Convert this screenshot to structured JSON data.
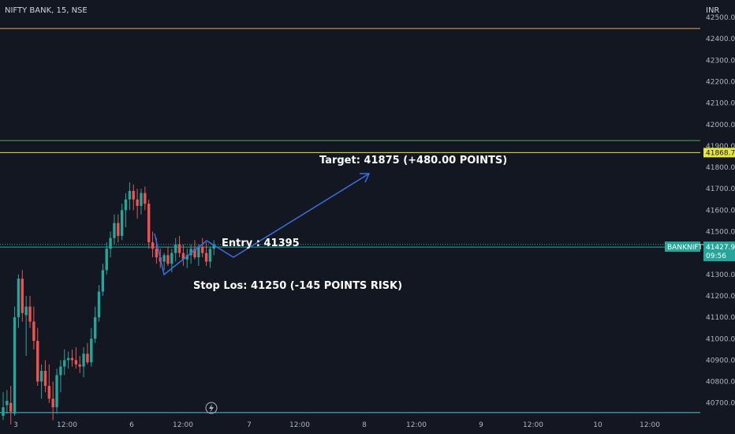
{
  "header": {
    "title": "NIFTY BANK, 15, NSE",
    "currency": "INR"
  },
  "colors": {
    "background": "#131722",
    "up": "#26a69a",
    "down": "#ef5350",
    "target_line": "#e6e63c",
    "top_line": "#f0a050",
    "mid_line": "#4caf50",
    "price_line": "#26a69a",
    "low_line": "#5bbcd6",
    "projection": "#3b6fe0"
  },
  "chart_data": {
    "type": "candlestick",
    "symbol": "BANKNIFTY",
    "ylim": [
      40640,
      42500
    ],
    "y_ticks": [
      40700,
      40800,
      40900,
      41000,
      41100,
      41200,
      41300,
      41400,
      41500,
      41600,
      41700,
      41800,
      41900,
      42000,
      42100,
      42200,
      42300,
      42400,
      42500
    ],
    "x_tick_labels": [
      "3",
      "12:00",
      "6",
      "12:00",
      "7",
      "12:00",
      "8",
      "12:00",
      "9",
      "12:00",
      "10",
      "12:00"
    ],
    "levels": [
      {
        "name": "top",
        "value": 42448
      },
      {
        "name": "mid",
        "value": 41925
      },
      {
        "name": "target",
        "value": 41868.7,
        "label": "41868.70"
      },
      {
        "name": "entry",
        "value": 41440
      },
      {
        "name": "price",
        "value": 41427.9,
        "label": "41427.90",
        "symbol_tag": "BANKNIFTY",
        "countdown": "09:56"
      },
      {
        "name": "low",
        "value": 40655
      }
    ],
    "candles": [
      [
        40640,
        40750,
        40620,
        40680
      ],
      [
        40690,
        40760,
        40650,
        40710
      ],
      [
        40700,
        40780,
        40600,
        40660
      ],
      [
        40650,
        41150,
        40640,
        41100
      ],
      [
        41100,
        41300,
        41050,
        41280
      ],
      [
        41280,
        41320,
        41080,
        41120
      ],
      [
        41110,
        41200,
        40920,
        41150
      ],
      [
        41150,
        41200,
        41050,
        41080
      ],
      [
        41080,
        41150,
        40950,
        40990
      ],
      [
        40990,
        41050,
        40780,
        40800
      ],
      [
        40800,
        40880,
        40720,
        40850
      ],
      [
        40850,
        40900,
        40750,
        40780
      ],
      [
        40780,
        40880,
        40700,
        40720
      ],
      [
        40720,
        40800,
        40620,
        40680
      ],
      [
        40680,
        40860,
        40650,
        40830
      ],
      [
        40830,
        40900,
        40750,
        40870
      ],
      [
        40870,
        40950,
        40830,
        40900
      ],
      [
        40900,
        40940,
        40860,
        40910
      ],
      [
        40910,
        40950,
        40870,
        40900
      ],
      [
        40900,
        40960,
        40860,
        40880
      ],
      [
        40880,
        40920,
        40840,
        40870
      ],
      [
        40870,
        40960,
        40820,
        40930
      ],
      [
        40930,
        40980,
        40880,
        40890
      ],
      [
        40890,
        41050,
        40870,
        41000
      ],
      [
        41000,
        41150,
        40980,
        41100
      ],
      [
        41100,
        41250,
        41080,
        41220
      ],
      [
        41220,
        41350,
        41200,
        41320
      ],
      [
        41320,
        41450,
        41300,
        41420
      ],
      [
        41420,
        41500,
        41380,
        41470
      ],
      [
        41470,
        41580,
        41440,
        41540
      ],
      [
        41540,
        41580,
        41450,
        41480
      ],
      [
        41480,
        41630,
        41460,
        41600
      ],
      [
        41600,
        41680,
        41520,
        41650
      ],
      [
        41650,
        41730,
        41600,
        41690
      ],
      [
        41690,
        41720,
        41600,
        41650
      ],
      [
        41650,
        41700,
        41560,
        41620
      ],
      [
        41620,
        41700,
        41580,
        41680
      ],
      [
        41680,
        41710,
        41600,
        41630
      ],
      [
        41630,
        41650,
        41420,
        41450
      ],
      [
        41450,
        41500,
        41380,
        41420
      ],
      [
        41420,
        41470,
        41350,
        41380
      ],
      [
        41380,
        41420,
        41330,
        41360
      ],
      [
        41360,
        41400,
        41320,
        41390
      ],
      [
        41390,
        41430,
        41340,
        41350
      ],
      [
        41350,
        41420,
        41310,
        41400
      ],
      [
        41400,
        41470,
        41360,
        41440
      ],
      [
        41440,
        41480,
        41380,
        41400
      ],
      [
        41400,
        41440,
        41340,
        41370
      ],
      [
        41370,
        41420,
        41330,
        41390
      ],
      [
        41390,
        41440,
        41350,
        41420
      ],
      [
        41420,
        41460,
        41370,
        41380
      ],
      [
        41380,
        41440,
        41340,
        41430
      ],
      [
        41430,
        41470,
        41380,
        41400
      ],
      [
        41400,
        41450,
        41340,
        41360
      ],
      [
        41360,
        41430,
        41330,
        41420
      ],
      [
        41420,
        41460,
        41390,
        41440
      ]
    ],
    "projection_path": [
      [
        41630,
        41280
      ],
      [
        41440,
        41440
      ],
      [
        41395,
        41380
      ],
      [
        41875,
        41770
      ]
    ],
    "annotations": {
      "target": "Target: 41875 (+480.00 POINTS)",
      "entry": "Entry : 41395",
      "stop": "Stop Los: 41250 (-145 POINTS RISK)"
    }
  }
}
